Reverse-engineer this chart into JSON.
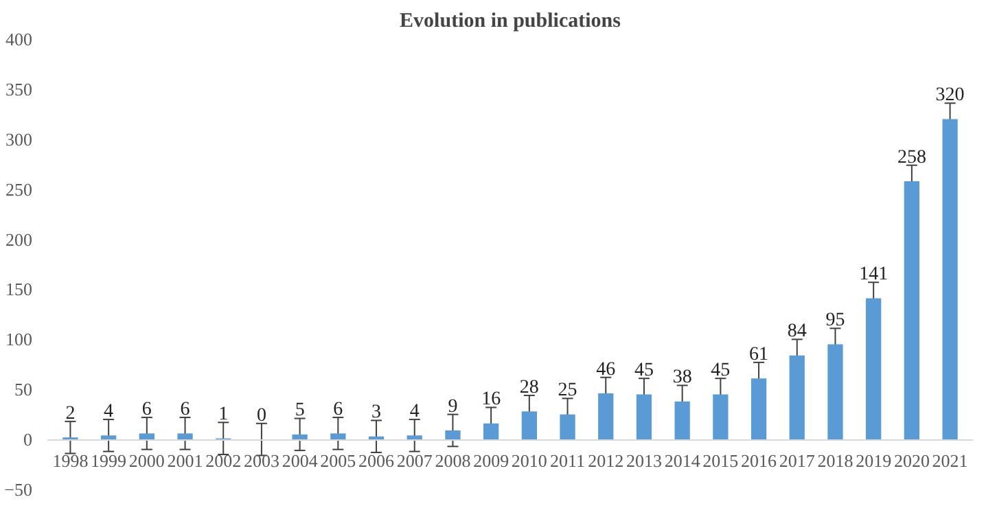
{
  "chart_data": {
    "type": "bar",
    "title": "Evolution in publications",
    "categories": [
      "1998",
      "1999",
      "2000",
      "2001",
      "2002",
      "2003",
      "2004",
      "2005",
      "2006",
      "2007",
      "2008",
      "2009",
      "2010",
      "2011",
      "2012",
      "2013",
      "2014",
      "2015",
      "2016",
      "2017",
      "2018",
      "2019",
      "2020",
      "2021"
    ],
    "values": [
      2,
      4,
      6,
      6,
      1,
      0,
      5,
      6,
      3,
      4,
      9,
      16,
      28,
      25,
      46,
      45,
      38,
      45,
      61,
      84,
      95,
      141,
      258,
      320
    ],
    "errors": [
      16,
      16,
      16,
      16,
      16,
      16,
      16,
      16,
      16,
      16,
      16,
      16,
      16,
      16,
      16,
      16,
      16,
      16,
      16,
      16,
      16,
      16,
      16,
      16
    ],
    "color": "#5b9bd5",
    "ylim": [
      -50,
      400
    ],
    "yticks": [
      -50,
      0,
      50,
      100,
      150,
      200,
      250,
      300,
      350,
      400
    ],
    "data_labels": true,
    "grid": false
  }
}
